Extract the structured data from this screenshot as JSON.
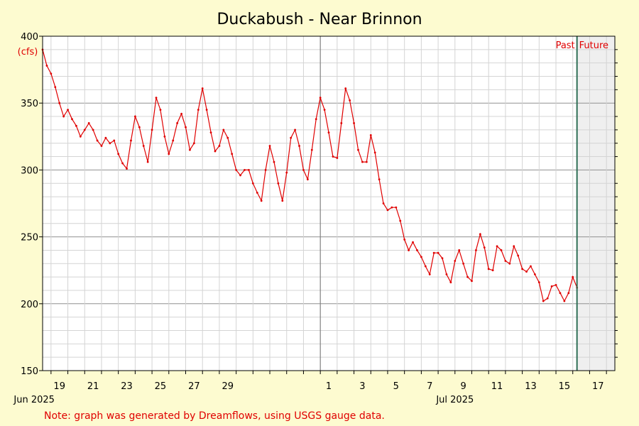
{
  "chart_data": {
    "type": "line",
    "title": "Duckabush - Near Brinnon",
    "units_label": "(cfs)",
    "ylim": [
      150,
      400
    ],
    "y_ticks": [
      150,
      200,
      250,
      300,
      350,
      400
    ],
    "xlim": [
      "2025-05-18 12:00",
      "2025-07-18 12:00"
    ],
    "x_tick_labels": [
      "19",
      "21",
      "23",
      "25",
      "27",
      "29",
      "1",
      "3",
      "5",
      "7",
      "9",
      "11",
      "13",
      "15",
      "17"
    ],
    "x_tick_dates": [
      "2025-05-19",
      "2025-05-21",
      "2025-05-23",
      "2025-05-25",
      "2025-05-27",
      "2025-05-29",
      "2025-07-01",
      "2025-07-03",
      "2025-07-05",
      "2025-07-07",
      "2025-07-09",
      "2025-07-11",
      "2025-07-13",
      "2025-07-15",
      "2025-07-17"
    ],
    "month_labels": [
      {
        "label": "Jun 2025",
        "date": "2025-06-25"
      },
      {
        "label": "Jul 2025",
        "date": "2025-07-09"
      }
    ],
    "month_boundary": "2025-07-01",
    "now": "2025-07-16 06:00",
    "past_label": "Past",
    "future_label": "Future",
    "grid": true,
    "series": [
      {
        "color": "#e00000",
        "points": [
          [
            "2025-05-18 12:00",
            390
          ],
          [
            "2025-05-18 18:00",
            378
          ],
          [
            "2025-05-19 00:00",
            372
          ],
          [
            "2025-05-19 06:00",
            362
          ],
          [
            "2025-05-19 12:00",
            350
          ],
          [
            "2025-05-19 18:00",
            340
          ],
          [
            "2025-05-20 00:00",
            345
          ],
          [
            "2025-05-20 06:00",
            338
          ],
          [
            "2025-05-20 12:00",
            333
          ],
          [
            "2025-05-20 18:00",
            325
          ],
          [
            "2025-05-21 00:00",
            330
          ],
          [
            "2025-05-21 06:00",
            335
          ],
          [
            "2025-05-21 12:00",
            330
          ],
          [
            "2025-05-21 18:00",
            322
          ],
          [
            "2025-05-22 00:00",
            318
          ],
          [
            "2025-05-22 06:00",
            324
          ],
          [
            "2025-05-22 12:00",
            320
          ],
          [
            "2025-05-22 18:00",
            322
          ],
          [
            "2025-05-23 00:00",
            312
          ],
          [
            "2025-05-23 06:00",
            305
          ],
          [
            "2025-05-23 12:00",
            301
          ],
          [
            "2025-05-23 18:00",
            322
          ],
          [
            "2025-05-24 00:00",
            340
          ],
          [
            "2025-05-24 06:00",
            332
          ],
          [
            "2025-05-24 12:00",
            318
          ],
          [
            "2025-05-24 18:00",
            306
          ],
          [
            "2025-05-25 00:00",
            330
          ],
          [
            "2025-05-25 06:00",
            354
          ],
          [
            "2025-05-25 12:00",
            345
          ],
          [
            "2025-05-25 18:00",
            325
          ],
          [
            "2025-05-26 00:00",
            312
          ],
          [
            "2025-05-26 06:00",
            322
          ],
          [
            "2025-05-26 12:00",
            335
          ],
          [
            "2025-05-26 18:00",
            342
          ],
          [
            "2025-05-27 00:00",
            332
          ],
          [
            "2025-05-27 06:00",
            315
          ],
          [
            "2025-05-27 12:00",
            320
          ],
          [
            "2025-05-27 18:00",
            345
          ],
          [
            "2025-05-28 00:00",
            361
          ],
          [
            "2025-05-28 06:00",
            345
          ],
          [
            "2025-05-28 12:00",
            328
          ],
          [
            "2025-05-28 18:00",
            314
          ],
          [
            "2025-05-29 00:00",
            318
          ],
          [
            "2025-05-29 06:00",
            330
          ],
          [
            "2025-05-29 12:00",
            324
          ],
          [
            "2025-05-29 18:00",
            312
          ],
          [
            "2025-05-30 00:00",
            300
          ],
          [
            "2025-05-30 06:00",
            296
          ],
          [
            "2025-05-30 12:00",
            300
          ],
          [
            "2025-05-30 18:00",
            300
          ],
          [
            "2025-05-31 00:00",
            290
          ],
          [
            "2025-05-31 06:00",
            283
          ],
          [
            "2025-05-31 12:00",
            277
          ],
          [
            "2025-05-31 18:00",
            300
          ],
          [
            "2025-06-01 00:00",
            318
          ],
          [
            "2025-06-01 06:00",
            306
          ],
          [
            "2025-06-01 12:00",
            290
          ],
          [
            "2025-06-01 18:00",
            277
          ],
          [
            "2025-06-02 00:00",
            298
          ],
          [
            "2025-06-02 06:00",
            324
          ],
          [
            "2025-06-02 12:00",
            330
          ],
          [
            "2025-06-02 18:00",
            318
          ],
          [
            "2025-06-03 00:00",
            300
          ],
          [
            "2025-06-03 06:00",
            293
          ],
          [
            "2025-06-03 12:00",
            315
          ],
          [
            "2025-06-03 18:00",
            338
          ],
          [
            "2025-07-01 00:00",
            354
          ],
          [
            "2025-07-01 06:00",
            345
          ],
          [
            "2025-07-01 12:00",
            328
          ],
          [
            "2025-07-01 18:00",
            310
          ],
          [
            "2025-07-02 00:00",
            309
          ],
          [
            "2025-07-02 06:00",
            335
          ],
          [
            "2025-07-02 12:00",
            361
          ],
          [
            "2025-07-02 18:00",
            352
          ],
          [
            "2025-07-03 00:00",
            335
          ],
          [
            "2025-07-03 06:00",
            315
          ],
          [
            "2025-07-03 12:00",
            306
          ],
          [
            "2025-07-03 18:00",
            306
          ],
          [
            "2025-07-04 00:00",
            326
          ],
          [
            "2025-07-04 06:00",
            313
          ],
          [
            "2025-07-04 12:00",
            293
          ],
          [
            "2025-07-04 18:00",
            275
          ],
          [
            "2025-07-05 00:00",
            270
          ],
          [
            "2025-07-05 06:00",
            272
          ],
          [
            "2025-07-05 12:00",
            272
          ],
          [
            "2025-07-05 18:00",
            262
          ],
          [
            "2025-07-06 00:00",
            248
          ],
          [
            "2025-07-06 06:00",
            240
          ],
          [
            "2025-07-06 12:00",
            246
          ],
          [
            "2025-07-06 18:00",
            240
          ],
          [
            "2025-07-07 00:00",
            235
          ],
          [
            "2025-07-07 06:00",
            228
          ],
          [
            "2025-07-07 12:00",
            222
          ],
          [
            "2025-07-07 18:00",
            238
          ],
          [
            "2025-07-08 00:00",
            238
          ],
          [
            "2025-07-08 06:00",
            234
          ],
          [
            "2025-07-08 12:00",
            222
          ],
          [
            "2025-07-08 18:00",
            216
          ],
          [
            "2025-07-09 00:00",
            232
          ],
          [
            "2025-07-09 06:00",
            240
          ],
          [
            "2025-07-09 12:00",
            230
          ],
          [
            "2025-07-09 18:00",
            220
          ],
          [
            "2025-07-10 00:00",
            217
          ],
          [
            "2025-07-10 06:00",
            240
          ],
          [
            "2025-07-10 12:00",
            252
          ],
          [
            "2025-07-10 18:00",
            242
          ],
          [
            "2025-07-11 00:00",
            226
          ],
          [
            "2025-07-11 06:00",
            225
          ],
          [
            "2025-07-11 12:00",
            243
          ],
          [
            "2025-07-11 18:00",
            240
          ],
          [
            "2025-07-12 00:00",
            232
          ],
          [
            "2025-07-12 06:00",
            230
          ],
          [
            "2025-07-12 12:00",
            243
          ],
          [
            "2025-07-12 18:00",
            236
          ],
          [
            "2025-07-13 00:00",
            226
          ],
          [
            "2025-07-13 06:00",
            224
          ],
          [
            "2025-07-13 12:00",
            228
          ],
          [
            "2025-07-13 18:00",
            222
          ],
          [
            "2025-07-14 00:00",
            216
          ],
          [
            "2025-07-14 06:00",
            202
          ],
          [
            "2025-07-14 12:00",
            204
          ],
          [
            "2025-07-14 18:00",
            213
          ],
          [
            "2025-07-15 00:00",
            214
          ],
          [
            "2025-07-15 06:00",
            208
          ],
          [
            "2025-07-15 12:00",
            202
          ],
          [
            "2025-07-15 18:00",
            208
          ],
          [
            "2025-07-16 00:00",
            220
          ],
          [
            "2025-07-16 06:00",
            212
          ]
        ]
      }
    ],
    "footnote": "Note: graph was generated by Dreamflows, using USGS gauge data."
  },
  "colors": {
    "background": "#fdfbd0",
    "plot_background": "#ffffff",
    "future_background": "#efefef",
    "now_line": "#2e6e55",
    "series": "#e00000",
    "label_red": "#e00000"
  }
}
